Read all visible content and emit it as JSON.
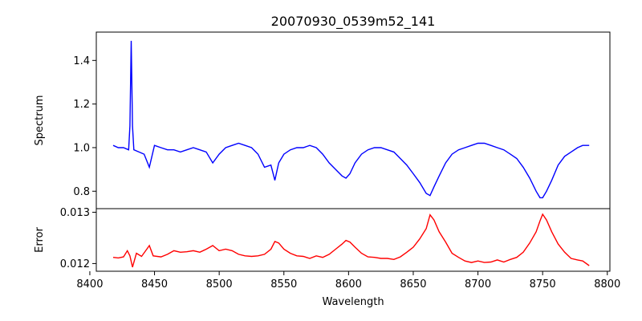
{
  "chart_data": [
    {
      "type": "line",
      "title": "20070930_0539m52_141",
      "ylabel": "Spectrum",
      "xlim": [
        8405,
        8802
      ],
      "ylim": [
        0.72,
        1.53
      ],
      "yticks": [
        0.8,
        1.0,
        1.2,
        1.4
      ],
      "ytick_labels": [
        "0.8",
        "1.0",
        "1.2",
        "1.4"
      ],
      "grid": false,
      "series": [
        {
          "color": "#0000ff",
          "x": [
            8418,
            8422,
            8426,
            8430,
            8431,
            8432,
            8433,
            8434,
            8438,
            8442,
            8446,
            8450,
            8455,
            8460,
            8465,
            8470,
            8475,
            8480,
            8485,
            8490,
            8495,
            8500,
            8505,
            8510,
            8515,
            8520,
            8525,
            8530,
            8535,
            8540,
            8543,
            8546,
            8550,
            8555,
            8560,
            8565,
            8570,
            8575,
            8580,
            8585,
            8590,
            8595,
            8598,
            8601,
            8605,
            8610,
            8615,
            8620,
            8625,
            8630,
            8635,
            8640,
            8645,
            8650,
            8655,
            8660,
            8663,
            8666,
            8670,
            8675,
            8680,
            8685,
            8690,
            8695,
            8700,
            8705,
            8710,
            8715,
            8720,
            8725,
            8730,
            8735,
            8740,
            8745,
            8748,
            8750,
            8753,
            8757,
            8762,
            8767,
            8772,
            8777,
            8781,
            8786
          ],
          "y": [
            1.01,
            1.0,
            1.0,
            0.99,
            1.1,
            1.49,
            1.1,
            0.99,
            0.98,
            0.97,
            0.91,
            1.01,
            1.0,
            0.99,
            0.99,
            0.98,
            0.99,
            1.0,
            0.99,
            0.98,
            0.93,
            0.97,
            1.0,
            1.01,
            1.02,
            1.01,
            1.0,
            0.97,
            0.91,
            0.92,
            0.85,
            0.93,
            0.97,
            0.99,
            1.0,
            1.0,
            1.01,
            1.0,
            0.97,
            0.93,
            0.9,
            0.87,
            0.86,
            0.88,
            0.93,
            0.97,
            0.99,
            1.0,
            1.0,
            0.99,
            0.98,
            0.95,
            0.92,
            0.88,
            0.84,
            0.79,
            0.78,
            0.82,
            0.87,
            0.93,
            0.97,
            0.99,
            1.0,
            1.01,
            1.02,
            1.02,
            1.01,
            1.0,
            0.99,
            0.97,
            0.95,
            0.91,
            0.86,
            0.8,
            0.77,
            0.77,
            0.8,
            0.85,
            0.92,
            0.96,
            0.98,
            1.0,
            1.01,
            1.01
          ]
        }
      ]
    },
    {
      "type": "line",
      "xlabel": "Wavelength",
      "ylabel": "Error",
      "xlim": [
        8405,
        8802
      ],
      "ylim": [
        0.01185,
        0.01307
      ],
      "xticks": [
        8400,
        8450,
        8500,
        8550,
        8600,
        8650,
        8700,
        8750,
        8800
      ],
      "xtick_labels": [
        "8400",
        "8450",
        "8500",
        "8550",
        "8600",
        "8650",
        "8700",
        "8750",
        "8800"
      ],
      "yticks": [
        0.012,
        0.013
      ],
      "ytick_labels": [
        "0.012",
        "0.013"
      ],
      "grid": false,
      "series": [
        {
          "color": "#ff0000",
          "x": [
            8418,
            8422,
            8426,
            8429,
            8431,
            8433,
            8436,
            8440,
            8444,
            8446,
            8449,
            8455,
            8460,
            8465,
            8470,
            8475,
            8480,
            8485,
            8490,
            8495,
            8500,
            8505,
            8510,
            8515,
            8520,
            8525,
            8530,
            8535,
            8540,
            8543,
            8546,
            8550,
            8555,
            8560,
            8565,
            8570,
            8575,
            8580,
            8585,
            8590,
            8595,
            8598,
            8601,
            8605,
            8610,
            8615,
            8620,
            8625,
            8630,
            8635,
            8640,
            8645,
            8650,
            8655,
            8660,
            8663,
            8666,
            8670,
            8675,
            8680,
            8685,
            8690,
            8695,
            8700,
            8705,
            8710,
            8715,
            8720,
            8725,
            8730,
            8735,
            8740,
            8745,
            8748,
            8750,
            8753,
            8757,
            8762,
            8767,
            8772,
            8777,
            8781,
            8786
          ],
          "y": [
            0.01212,
            0.01211,
            0.01213,
            0.01225,
            0.01215,
            0.01193,
            0.0122,
            0.01214,
            0.01228,
            0.01235,
            0.01215,
            0.01213,
            0.01218,
            0.01225,
            0.01222,
            0.01223,
            0.01225,
            0.01222,
            0.01228,
            0.01235,
            0.01225,
            0.01228,
            0.01225,
            0.01218,
            0.01215,
            0.01214,
            0.01215,
            0.01218,
            0.01228,
            0.01243,
            0.0124,
            0.01228,
            0.0122,
            0.01215,
            0.01214,
            0.0121,
            0.01215,
            0.01212,
            0.01218,
            0.01228,
            0.01238,
            0.01245,
            0.01242,
            0.01232,
            0.0122,
            0.01213,
            0.01212,
            0.0121,
            0.0121,
            0.01208,
            0.01213,
            0.01222,
            0.01232,
            0.01248,
            0.01268,
            0.01295,
            0.01285,
            0.01262,
            0.01242,
            0.0122,
            0.01212,
            0.01205,
            0.01202,
            0.01205,
            0.01202,
            0.01203,
            0.01207,
            0.01203,
            0.01208,
            0.01212,
            0.01222,
            0.0124,
            0.01262,
            0.01283,
            0.01296,
            0.01285,
            0.01262,
            0.01238,
            0.01222,
            0.0121,
            0.01207,
            0.01205,
            0.01196
          ]
        }
      ]
    }
  ]
}
